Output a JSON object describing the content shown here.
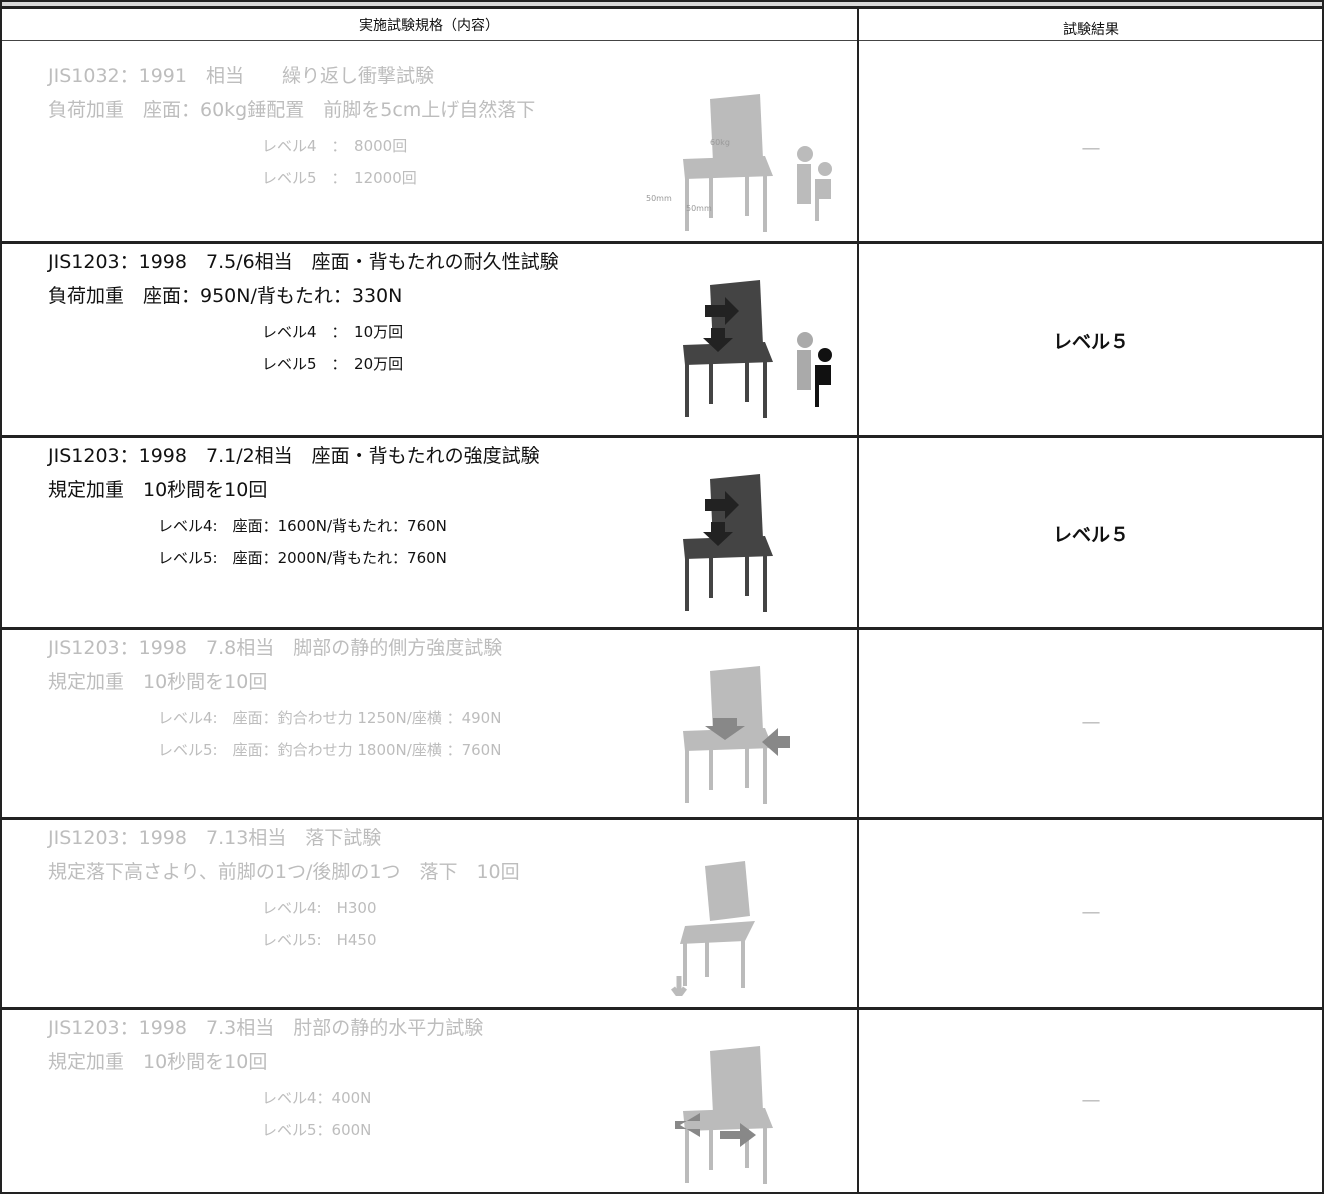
{
  "header": {
    "columns": [
      "実施試験規格（内容）",
      "試験結果"
    ]
  },
  "rows": [
    {
      "color": "#bdbdbd",
      "lines": [
        "JIS1032：1991　相当　　繰り返し衝撃試験",
        "負荷加重　座面：60kg錘配置　前脚を5cm上げ自然落下",
        "レベル4　：　8000回",
        "レベル5　：　12000回"
      ],
      "result": "—",
      "figure_labels": [
        "60kg",
        "50mm",
        "50mm"
      ]
    },
    {
      "color": "#111111",
      "lines": [
        "JIS1203：1998　7.5/6相当　座面・背もたれの耐久性試験",
        "負荷加重　座面：950N/背もたれ：330N",
        "レベル4　：　10万回",
        "レベル5　：　20万回"
      ],
      "result": "レベル５"
    },
    {
      "color": "#111111",
      "lines": [
        "JIS1203：1998　7.1/2相当　座面・背もたれの強度試験",
        "規定加重　10秒間を10回",
        "レベル4:　座面：1600N/背もたれ：760N",
        "レベル5:　座面：2000N/背もたれ：760N"
      ],
      "result": "レベル５"
    },
    {
      "color": "#bdbdbd",
      "lines": [
        "JIS1203：1998　7.8相当　脚部の静的側方強度試験",
        "規定加重　10秒間を10回",
        "レベル4:　座面：釣合わせ力 1250N/座横 ：490N",
        "レベル5:　座面：釣合わせ力 1800N/座横 ：760N"
      ],
      "result": "—"
    },
    {
      "color": "#bdbdbd",
      "lines": [
        "JIS1203：1998　7.13相当　落下試験",
        "規定落下高さより、前脚の1つ/後脚の1つ　落下　10回",
        "レベル4:　H300",
        "レベル5:　H450"
      ],
      "result": "—"
    },
    {
      "color": "#bdbdbd",
      "lines": [
        "JIS1203：1998　7.3相当　肘部の静的水平力試験",
        "規定加重　10秒間を10回",
        "レベル4：400N",
        "レベル5：600N"
      ],
      "result": "—"
    }
  ]
}
